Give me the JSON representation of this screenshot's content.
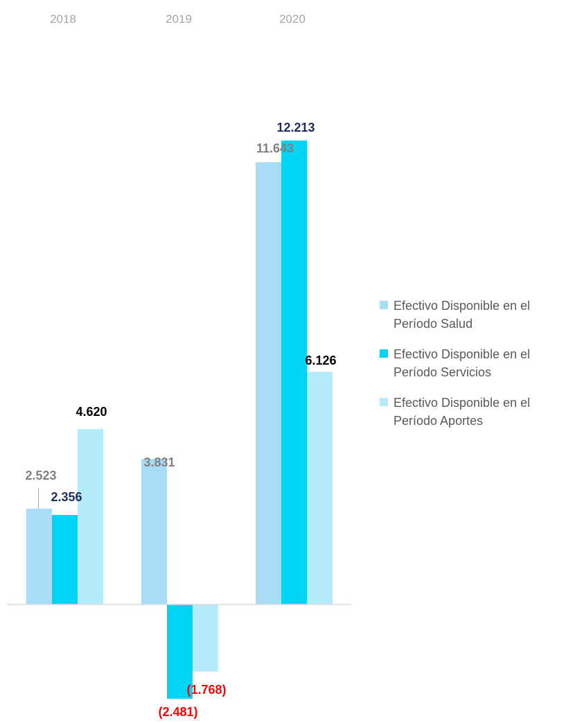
{
  "chart_data": {
    "type": "bar",
    "categories": [
      "2018",
      "2019",
      "2020"
    ],
    "series": [
      {
        "name": "Efectivo Disponible en el Período Salud",
        "color": "#a9dcf6",
        "values": [
          2.523,
          3.831,
          11.643
        ],
        "labels": [
          "2.523",
          "3.831",
          "11.643"
        ],
        "label_color": "#808080"
      },
      {
        "name": "Efectivo Disponible en el Período Servicios",
        "color": "#00d4f5",
        "values": [
          2.356,
          -2.481,
          12.213
        ],
        "labels": [
          "2.356",
          "(2.481)",
          "12.213"
        ],
        "label_color": "#1f2d5e"
      },
      {
        "name": "Efectivo Disponible en el Período Aportes",
        "color": "#b5ecfa",
        "values": [
          4.62,
          -1.768,
          6.126
        ],
        "labels": [
          "4.620",
          "(1.768)",
          "6.126"
        ],
        "label_color": "#000000"
      }
    ],
    "negative_label_color": "#ff0000",
    "legend_position": "right",
    "grid": false
  }
}
